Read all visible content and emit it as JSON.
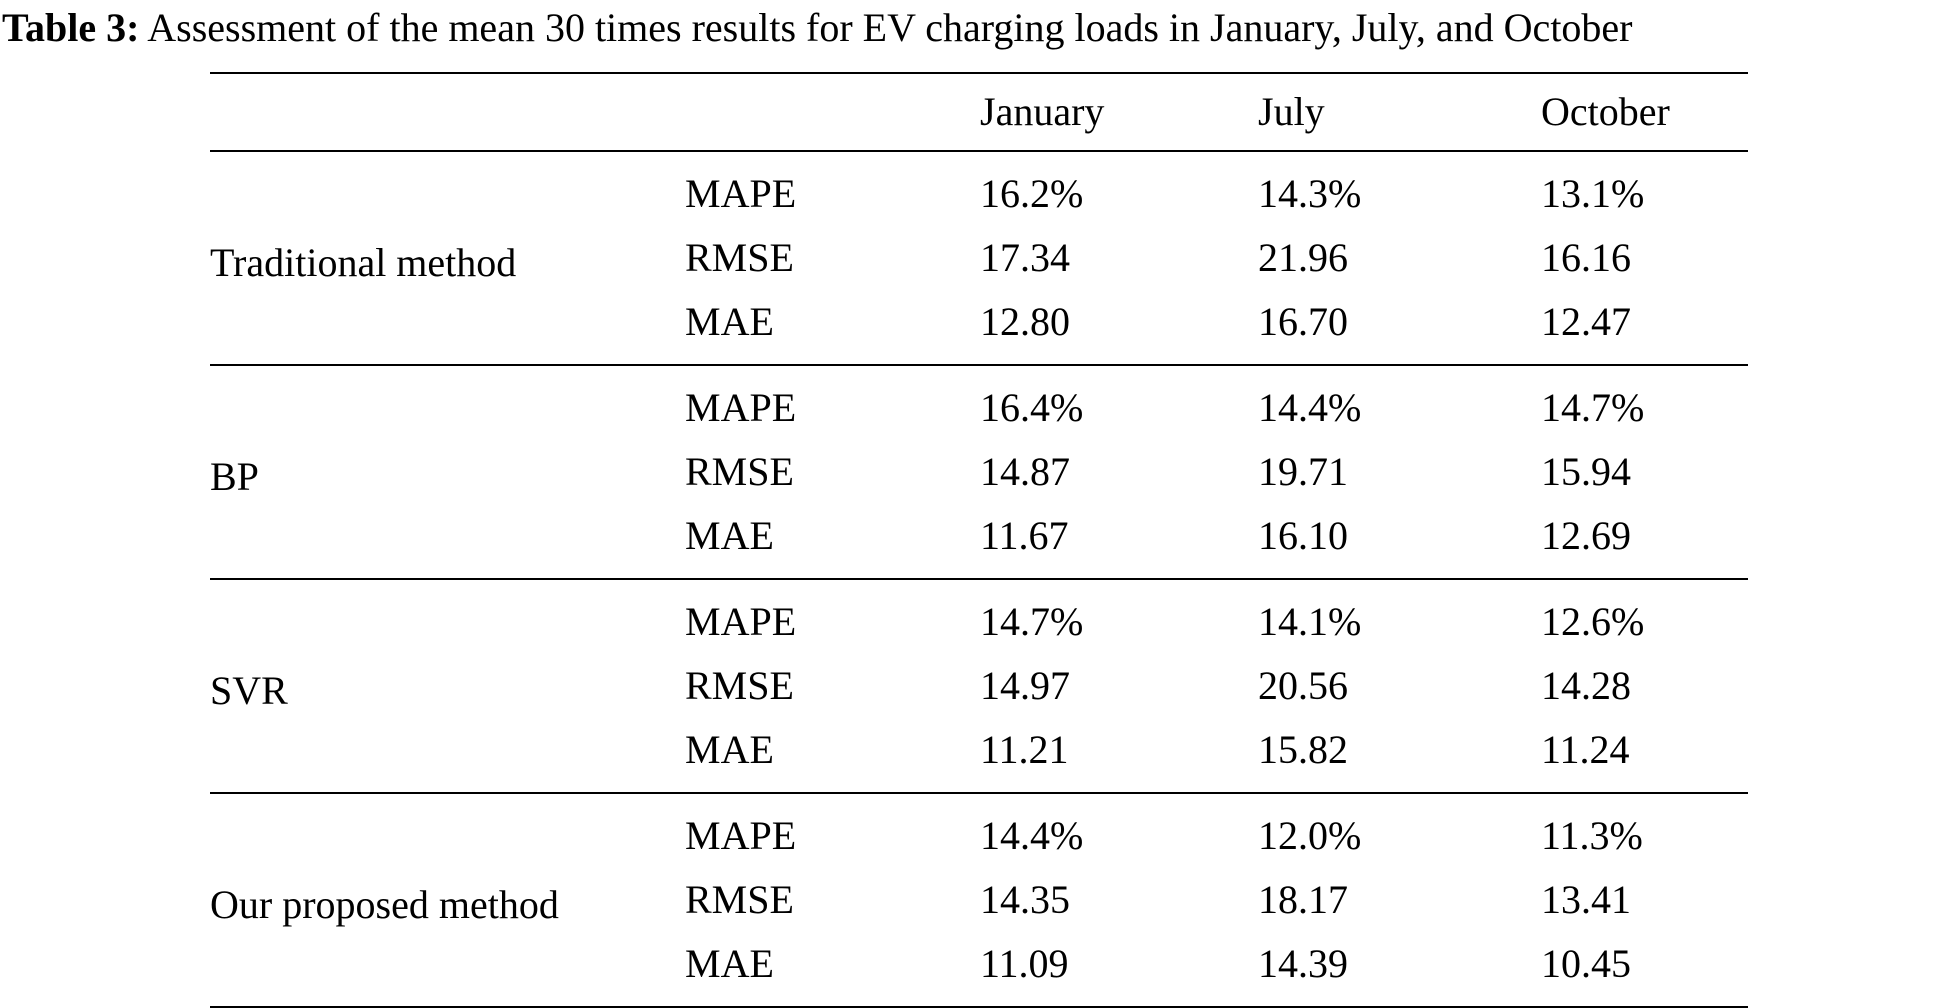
{
  "caption": {
    "label": "Table 3:",
    "text": " Assessment of the mean 30 times results for EV charging loads in January, July, and October"
  },
  "table": {
    "columns": [
      "January",
      "July",
      "October"
    ],
    "metrics_order": [
      "MAPE",
      "RMSE",
      "MAE"
    ],
    "groups": [
      {
        "method": "Traditional method",
        "rows": [
          {
            "metric": "MAPE",
            "values": [
              "16.2%",
              "14.3%",
              "13.1%"
            ]
          },
          {
            "metric": "RMSE",
            "values": [
              "17.34",
              "21.96",
              "16.16"
            ]
          },
          {
            "metric": "MAE",
            "values": [
              "12.80",
              "16.70",
              "12.47"
            ]
          }
        ]
      },
      {
        "method": "BP",
        "rows": [
          {
            "metric": "MAPE",
            "values": [
              "16.4%",
              "14.4%",
              "14.7%"
            ]
          },
          {
            "metric": "RMSE",
            "values": [
              "14.87",
              "19.71",
              "15.94"
            ]
          },
          {
            "metric": "MAE",
            "values": [
              "11.67",
              "16.10",
              "12.69"
            ]
          }
        ]
      },
      {
        "method": "SVR",
        "rows": [
          {
            "metric": "MAPE",
            "values": [
              "14.7%",
              "14.1%",
              "12.6%"
            ]
          },
          {
            "metric": "RMSE",
            "values": [
              "14.97",
              "20.56",
              "14.28"
            ]
          },
          {
            "metric": "MAE",
            "values": [
              "11.21",
              "15.82",
              "11.24"
            ]
          }
        ]
      },
      {
        "method": "Our proposed method",
        "rows": [
          {
            "metric": "MAPE",
            "values": [
              "14.4%",
              "12.0%",
              "11.3%"
            ]
          },
          {
            "metric": "RMSE",
            "values": [
              "14.35",
              "18.17",
              "13.41"
            ]
          },
          {
            "metric": "MAE",
            "values": [
              "11.09",
              "14.39",
              "10.45"
            ]
          }
        ]
      }
    ]
  }
}
